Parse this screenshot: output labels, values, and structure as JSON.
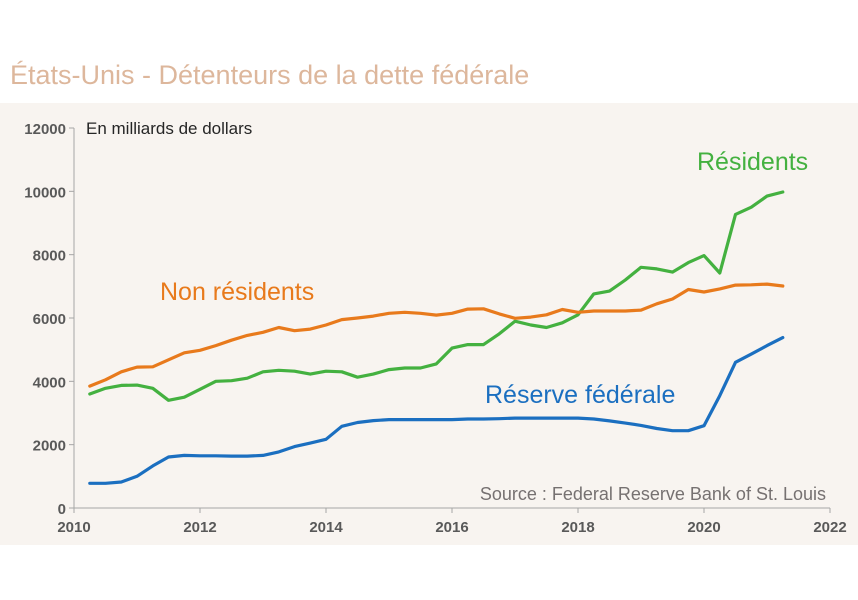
{
  "title": "États-Unis - Détenteurs de la dette fédérale",
  "chart_data": {
    "type": "line",
    "title": "États-Unis - Détenteurs de la dette fédérale",
    "ylabel": "En milliards de dollars",
    "source": "Source : Federal Reserve Bank of St. Louis",
    "xlim": [
      2010,
      2022
    ],
    "ylim": [
      0,
      12000
    ],
    "xticks": [
      "2010",
      "2012",
      "2014",
      "2016",
      "2018",
      "2020",
      "2022"
    ],
    "yticks": [
      "0",
      "2000",
      "4000",
      "6000",
      "8000",
      "10000",
      "12000"
    ],
    "grid": false,
    "legend": "labels placed next to lines",
    "series": [
      {
        "name": "Résidents",
        "color": "#44b140",
        "x": [
          2010.25,
          2010.5,
          2010.75,
          2011.0,
          2011.25,
          2011.5,
          2011.75,
          2012.0,
          2012.25,
          2012.5,
          2012.75,
          2013.0,
          2013.25,
          2013.5,
          2013.75,
          2014.0,
          2014.25,
          2014.5,
          2014.75,
          2015.0,
          2015.25,
          2015.5,
          2015.75,
          2016.0,
          2016.25,
          2016.5,
          2016.75,
          2017.0,
          2017.25,
          2017.5,
          2017.75,
          2018.0,
          2018.25,
          2018.5,
          2018.75,
          2019.0,
          2019.25,
          2019.5,
          2019.75,
          2020.0,
          2020.25,
          2020.5,
          2020.75,
          2021.0,
          2021.25
        ],
        "y": [
          3600,
          3780,
          3870,
          3880,
          3780,
          3400,
          3500,
          3750,
          4000,
          4020,
          4100,
          4300,
          4350,
          4320,
          4230,
          4320,
          4300,
          4130,
          4230,
          4370,
          4420,
          4420,
          4550,
          5050,
          5160,
          5160,
          5500,
          5900,
          5780,
          5700,
          5850,
          6100,
          6760,
          6850,
          7200,
          7600,
          7550,
          7450,
          7750,
          7970,
          7420,
          9270,
          9500,
          9850,
          9980
        ]
      },
      {
        "name": "Non résidents",
        "color": "#e87a1c",
        "x": [
          2010.25,
          2010.5,
          2010.75,
          2011.0,
          2011.25,
          2011.5,
          2011.75,
          2012.0,
          2012.25,
          2012.5,
          2012.75,
          2013.0,
          2013.25,
          2013.5,
          2013.75,
          2014.0,
          2014.25,
          2014.5,
          2014.75,
          2015.0,
          2015.25,
          2015.5,
          2015.75,
          2016.0,
          2016.25,
          2016.5,
          2016.75,
          2017.0,
          2017.25,
          2017.5,
          2017.75,
          2018.0,
          2018.25,
          2018.5,
          2018.75,
          2019.0,
          2019.25,
          2019.5,
          2019.75,
          2020.0,
          2020.25,
          2020.5,
          2020.75,
          2021.0,
          2021.25
        ],
        "y": [
          3850,
          4050,
          4300,
          4450,
          4460,
          4680,
          4900,
          4980,
          5130,
          5300,
          5450,
          5550,
          5700,
          5600,
          5650,
          5780,
          5950,
          6000,
          6060,
          6150,
          6180,
          6150,
          6090,
          6150,
          6280,
          6290,
          6130,
          5990,
          6030,
          6100,
          6270,
          6180,
          6220,
          6220,
          6220,
          6250,
          6450,
          6600,
          6900,
          6820,
          6920,
          7040,
          7050,
          7070,
          7010
        ]
      },
      {
        "name": "Réserve fédérale",
        "color": "#1b6fc0",
        "x": [
          2010.25,
          2010.5,
          2010.75,
          2011.0,
          2011.25,
          2011.5,
          2011.75,
          2012.0,
          2012.25,
          2012.5,
          2012.75,
          2013.0,
          2013.25,
          2013.5,
          2013.75,
          2014.0,
          2014.25,
          2014.5,
          2014.75,
          2015.0,
          2015.25,
          2015.5,
          2015.75,
          2016.0,
          2016.25,
          2016.5,
          2016.75,
          2017.0,
          2017.25,
          2017.5,
          2017.75,
          2018.0,
          2018.25,
          2018.5,
          2018.75,
          2019.0,
          2019.25,
          2019.5,
          2019.75,
          2020.0,
          2020.25,
          2020.5,
          2020.75,
          2021.0,
          2021.25
        ],
        "y": [
          780,
          780,
          820,
          1000,
          1330,
          1610,
          1660,
          1650,
          1650,
          1640,
          1640,
          1660,
          1770,
          1940,
          2050,
          2170,
          2580,
          2700,
          2760,
          2790,
          2790,
          2790,
          2790,
          2790,
          2810,
          2810,
          2820,
          2840,
          2840,
          2840,
          2840,
          2840,
          2810,
          2750,
          2680,
          2610,
          2510,
          2440,
          2440,
          2600,
          3550,
          4600,
          4860,
          5130,
          5380
        ]
      }
    ]
  }
}
